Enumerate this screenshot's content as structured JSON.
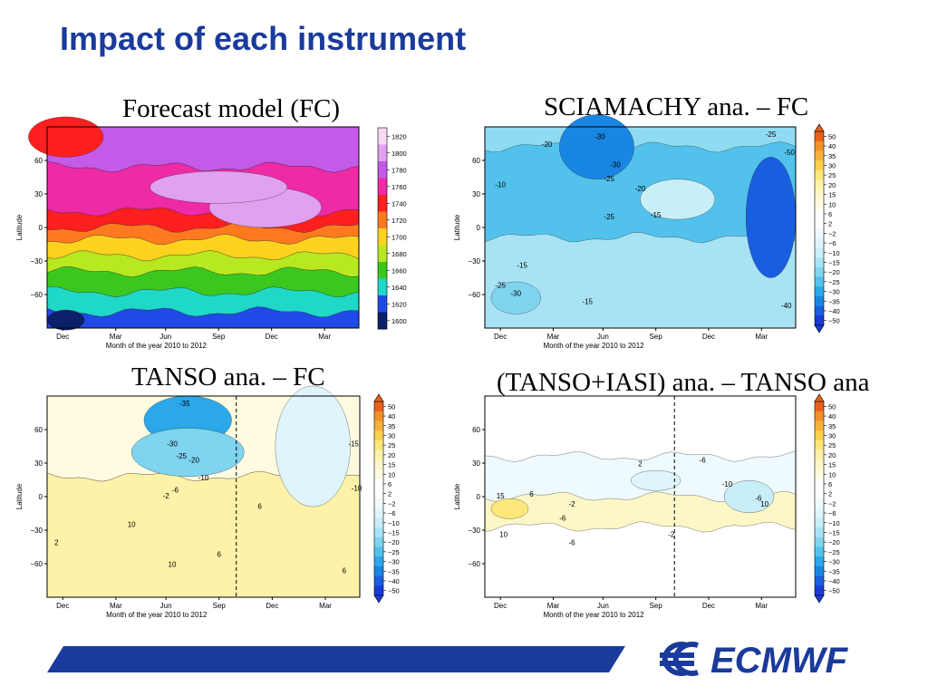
{
  "slide": {
    "title": "Impact of each instrument",
    "logo_text": "ECMWF",
    "colors": {
      "title": "#1a3b9c",
      "footer_bar": "#1a3b9c",
      "logo": "#1a3b9c"
    }
  },
  "chart_data": [
    {
      "type": "heatmap",
      "title": "Forecast model (FC)",
      "xlabel": "Month of the year 2010 to 2012",
      "ylabel": "Latitude",
      "xticks": [
        "Dec",
        "Mar",
        "Jun",
        "Sep",
        "Dec",
        "Mar"
      ],
      "yticks": [
        "60",
        "30",
        "0",
        "−30",
        "−60"
      ],
      "ylim": [
        -90,
        90
      ],
      "colorbar_levels": [
        "1820",
        "1800",
        "1780",
        "1760",
        "1740",
        "1720",
        "1700",
        "1680",
        "1660",
        "1640",
        "1620",
        "1600"
      ],
      "colorbar_colors": [
        "#f6d9f2",
        "#dfa1f0",
        "#c35ae8",
        "#ee2aa6",
        "#ff1f1f",
        "#ff7a1f",
        "#ffd21f",
        "#b8e81f",
        "#3ac81f",
        "#1fd8c8",
        "#1f4ae8",
        "#0b1f6b"
      ],
      "annotations": []
    },
    {
      "type": "heatmap",
      "title": "SCIAMACHY ana. – FC",
      "xlabel": "Month of the year 2010 to 2012",
      "ylabel": "Latitude",
      "xticks": [
        "Dec",
        "Mar",
        "Jun",
        "Sep",
        "Dec",
        "Mar"
      ],
      "yticks": [
        "60",
        "30",
        "0",
        "−30",
        "−60"
      ],
      "ylim": [
        -90,
        90
      ],
      "colorbar_levels": [
        "50",
        "40",
        "35",
        "30",
        "25",
        "20",
        "15",
        "10",
        "6",
        "2",
        "−2",
        "−6",
        "−10",
        "−15",
        "−20",
        "−25",
        "−30",
        "−35",
        "−40",
        "−50"
      ],
      "annotations": [
        "-20",
        "-30",
        "-25",
        "-30",
        "-20",
        "-10",
        "-25",
        "-15",
        "-15",
        "-25",
        "-30",
        "-15",
        "-40",
        "-50",
        "-25"
      ]
    },
    {
      "type": "heatmap",
      "title": "TANSO ana. – FC",
      "xlabel": "Month of the year 2010 to 2012",
      "ylabel": "Latitude",
      "xticks": [
        "Dec",
        "Mar",
        "Jun",
        "Sep",
        "Dec",
        "Mar"
      ],
      "yticks": [
        "60",
        "30",
        "0",
        "−30",
        "−60"
      ],
      "ylim": [
        -90,
        90
      ],
      "colorbar_levels": [
        "50",
        "40",
        "35",
        "30",
        "25",
        "20",
        "15",
        "10",
        "6",
        "2",
        "−2",
        "−6",
        "−10",
        "−15",
        "−20",
        "−25",
        "−30",
        "−35",
        "−40",
        "−50"
      ],
      "annotations": [
        "-35",
        "-30",
        "-25",
        "-20",
        "-10",
        "-6",
        "-2",
        "10",
        "2",
        "10",
        "6",
        "6",
        "6",
        "-15",
        "-10"
      ]
    },
    {
      "type": "heatmap",
      "title": "(TANSO+IASI) ana. – TANSO ana",
      "xlabel": "Month of the year 2010 to 2012",
      "ylabel": "Latitude",
      "xticks": [
        "Dec",
        "Mar",
        "Jun",
        "Sep",
        "Dec",
        "Mar"
      ],
      "yticks": [
        "60",
        "30",
        "0",
        "−30",
        "−60"
      ],
      "ylim": [
        -90,
        90
      ],
      "colorbar_levels": [
        "50",
        "40",
        "35",
        "30",
        "25",
        "20",
        "15",
        "10",
        "6",
        "2",
        "−2",
        "−6",
        "−10",
        "−15",
        "−20",
        "−25",
        "−30",
        "−35",
        "−40",
        "−50"
      ],
      "annotations": [
        "15",
        "6",
        "10",
        "-6",
        "-6",
        "-2",
        "2",
        "-10",
        "-6",
        "-6",
        "10",
        "-2"
      ]
    }
  ],
  "diff_colorbar_colors": [
    "#e8601a",
    "#f2902a",
    "#f7b03a",
    "#fcd04a",
    "#fde77a",
    "#fdf2a8",
    "#fdf7c8",
    "#fefbe0",
    "#ffffff",
    "#ffffff",
    "#eefafd",
    "#dff5fb",
    "#c8eef8",
    "#a8e3f5",
    "#7fd4f0",
    "#52c2ec",
    "#2aa8ea",
    "#1a86e3",
    "#1a5ee0",
    "#1a3bd8"
  ]
}
